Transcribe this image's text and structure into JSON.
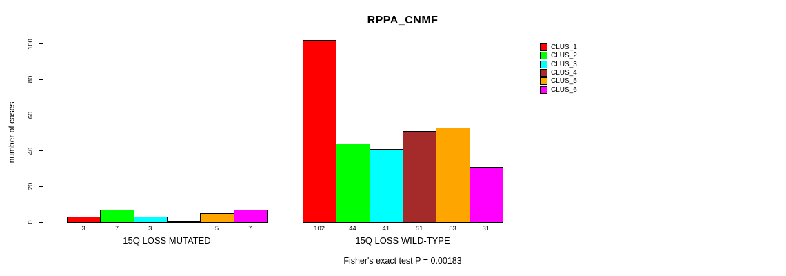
{
  "chart_data": {
    "type": "bar",
    "title": "RPPA_CNMF",
    "ylabel": "number of cases",
    "xlabel": "",
    "ylim": [
      0,
      100
    ],
    "yticks": [
      0,
      20,
      40,
      60,
      80,
      100
    ],
    "grid": false,
    "legend_position": "right-inside",
    "categories": [
      "CLUS_1",
      "CLUS_2",
      "CLUS_3",
      "CLUS_4",
      "CLUS_5",
      "CLUS_6"
    ],
    "colors": [
      "#FF0000",
      "#00FF00",
      "#00FFFF",
      "#A52A2A",
      "#FFA500",
      "#FF00FF"
    ],
    "groups": [
      {
        "label": "15Q LOSS MUTATED",
        "values": [
          3,
          7,
          3,
          0,
          5,
          7
        ]
      },
      {
        "label": "15Q LOSS WILD-TYPE",
        "values": [
          102,
          44,
          41,
          51,
          53,
          31
        ]
      }
    ],
    "bar_labels_note": "values printed under each nonzero bar"
  },
  "footer": {
    "text": "Fisher's exact test P = 0.00183"
  }
}
